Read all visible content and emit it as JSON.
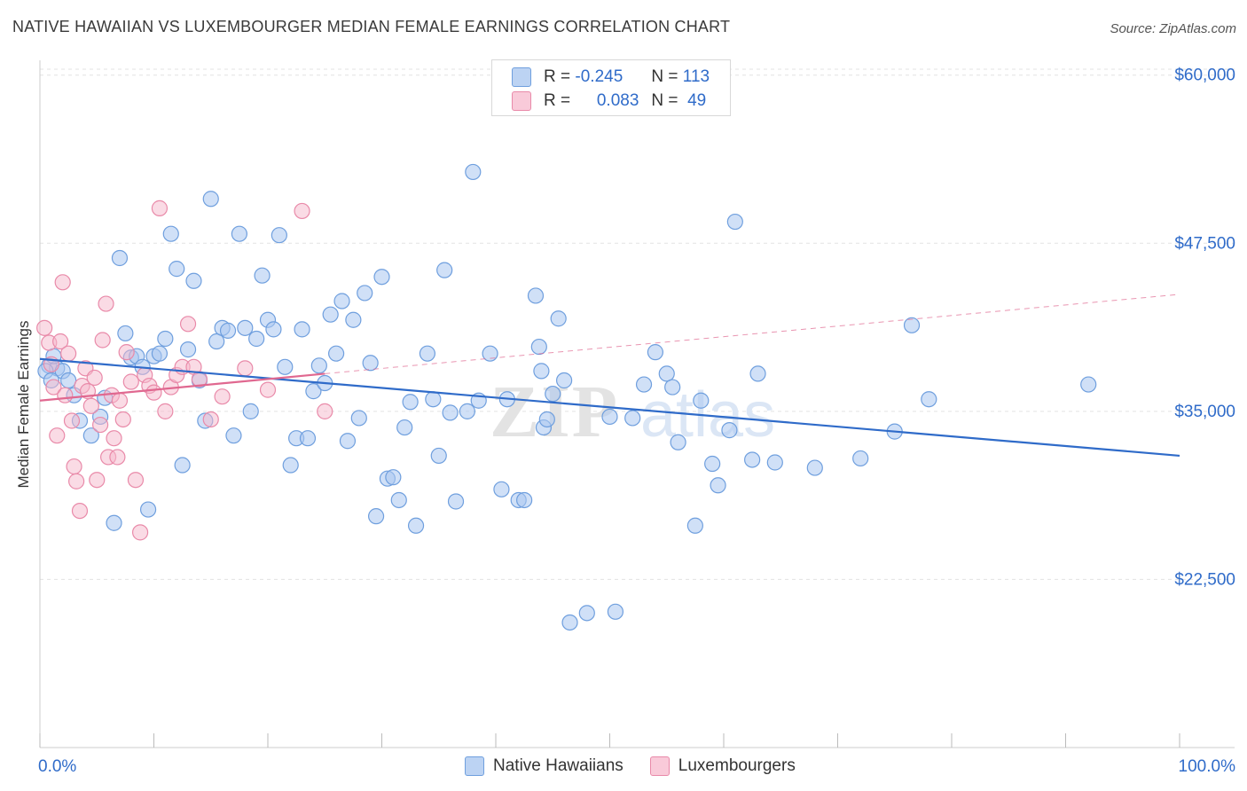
{
  "title": "NATIVE HAWAIIAN VS LUXEMBOURGER MEDIAN FEMALE EARNINGS CORRELATION CHART",
  "source": "Source: ZipAtlas.com",
  "watermark": "ZIPatlas",
  "colors": {
    "blue_fill": "#a9c7f0",
    "blue_stroke": "#6f9fde",
    "blue_line": "#2f6bc9",
    "pink_fill": "#f6b8cc",
    "pink_stroke": "#e98aa9",
    "pink_line": "#e06890",
    "grid": "#e3e3e3",
    "axis_text": "#2f6bc9"
  },
  "legend": {
    "rows": [
      {
        "r_label": "R =",
        "r_value": "-0.245",
        "n_label": "N =",
        "n_value": "113"
      },
      {
        "r_label": "R =",
        "r_value": "0.083",
        "n_label": "N =",
        "n_value": "49"
      }
    ]
  },
  "chart_data": {
    "type": "scatter",
    "title": "NATIVE HAWAIIAN VS LUXEMBOURGER MEDIAN FEMALE EARNINGS CORRELATION CHART",
    "xlabel": "",
    "ylabel": "Median Female Earnings",
    "x_tick_labels": [
      "0.0%",
      "100.0%"
    ],
    "y_ticks": [
      22500,
      35000,
      47500,
      60000
    ],
    "y_tick_labels": [
      "$22,500",
      "$35,000",
      "$47,500",
      "$60,000"
    ],
    "xlim": [
      0,
      100
    ],
    "ylim": [
      10000,
      61500
    ],
    "grid": true,
    "legend_position": "bottom",
    "series": [
      {
        "name": "Native Hawaiians",
        "color": "blue",
        "trend": {
          "x": [
            0,
            100
          ],
          "y": [
            38900,
            31700
          ]
        },
        "points": [
          [
            0.8,
            38400
          ],
          [
            1.5,
            38200
          ],
          [
            2.0,
            38000
          ],
          [
            2.5,
            37300
          ],
          [
            3.0,
            36200
          ],
          [
            3.5,
            34300
          ],
          [
            4.5,
            33200
          ],
          [
            5.3,
            34600
          ],
          [
            5.7,
            36000
          ],
          [
            6.5,
            26700
          ],
          [
            7.0,
            46400
          ],
          [
            7.5,
            40800
          ],
          [
            8.0,
            39000
          ],
          [
            8.5,
            39100
          ],
          [
            9.0,
            38300
          ],
          [
            9.5,
            27700
          ],
          [
            10.0,
            39100
          ],
          [
            10.5,
            39300
          ],
          [
            11.0,
            40400
          ],
          [
            11.5,
            48200
          ],
          [
            12.0,
            45600
          ],
          [
            12.5,
            31000
          ],
          [
            13.0,
            39600
          ],
          [
            13.5,
            44700
          ],
          [
            14.0,
            37300
          ],
          [
            14.5,
            34300
          ],
          [
            15.0,
            50800
          ],
          [
            15.5,
            40200
          ],
          [
            16.0,
            41200
          ],
          [
            16.5,
            41000
          ],
          [
            17.0,
            33200
          ],
          [
            17.5,
            48200
          ],
          [
            18.0,
            41200
          ],
          [
            18.5,
            35000
          ],
          [
            19.0,
            40400
          ],
          [
            19.5,
            45100
          ],
          [
            20.0,
            41800
          ],
          [
            20.5,
            41100
          ],
          [
            21.0,
            48100
          ],
          [
            21.5,
            38300
          ],
          [
            22.0,
            31000
          ],
          [
            22.5,
            33000
          ],
          [
            23.0,
            41100
          ],
          [
            23.5,
            33000
          ],
          [
            24.0,
            36500
          ],
          [
            24.5,
            38400
          ],
          [
            25.0,
            37100
          ],
          [
            25.5,
            42200
          ],
          [
            26.0,
            39300
          ],
          [
            26.5,
            43200
          ],
          [
            27.0,
            32800
          ],
          [
            27.5,
            41800
          ],
          [
            28.0,
            34500
          ],
          [
            28.5,
            43800
          ],
          [
            29.0,
            38600
          ],
          [
            29.5,
            27200
          ],
          [
            30.0,
            45000
          ],
          [
            30.5,
            30000
          ],
          [
            31.0,
            30100
          ],
          [
            31.5,
            28400
          ],
          [
            32.0,
            33800
          ],
          [
            32.5,
            35700
          ],
          [
            33.0,
            26500
          ],
          [
            34.0,
            39300
          ],
          [
            34.5,
            35900
          ],
          [
            35.0,
            31700
          ],
          [
            35.5,
            45500
          ],
          [
            36.0,
            34900
          ],
          [
            36.5,
            28300
          ],
          [
            37.5,
            35000
          ],
          [
            38.0,
            52800
          ],
          [
            38.5,
            35800
          ],
          [
            39.5,
            39300
          ],
          [
            40.5,
            29200
          ],
          [
            41.0,
            35900
          ],
          [
            42.0,
            28400
          ],
          [
            42.5,
            28400
          ],
          [
            43.5,
            43600
          ],
          [
            43.8,
            39800
          ],
          [
            44.0,
            38000
          ],
          [
            44.2,
            33800
          ],
          [
            44.5,
            34400
          ],
          [
            45.0,
            36300
          ],
          [
            45.5,
            41900
          ],
          [
            46.0,
            37300
          ],
          [
            46.5,
            19300
          ],
          [
            48.0,
            20000
          ],
          [
            50.0,
            34600
          ],
          [
            50.5,
            20100
          ],
          [
            52.0,
            34500
          ],
          [
            53.0,
            37000
          ],
          [
            54.0,
            39400
          ],
          [
            55.0,
            37800
          ],
          [
            55.5,
            36800
          ],
          [
            56.0,
            32700
          ],
          [
            57.5,
            26500
          ],
          [
            58.0,
            35800
          ],
          [
            59.0,
            31100
          ],
          [
            59.5,
            29500
          ],
          [
            60.5,
            33600
          ],
          [
            61.0,
            49100
          ],
          [
            62.5,
            31400
          ],
          [
            63.0,
            37800
          ],
          [
            64.5,
            31200
          ],
          [
            68.0,
            30800
          ],
          [
            72.0,
            31500
          ],
          [
            75.0,
            33500
          ],
          [
            76.5,
            41400
          ],
          [
            78.0,
            35900
          ],
          [
            92.0,
            37000
          ],
          [
            0.5,
            38000
          ],
          [
            1.0,
            37300
          ],
          [
            1.2,
            39100
          ]
        ]
      },
      {
        "name": "Luxembourgers",
        "color": "pink",
        "trend": {
          "x": [
            0,
            25
          ],
          "y": [
            35800,
            37800
          ]
        },
        "trend_extended": {
          "x": [
            25,
            100
          ],
          "y": [
            37800,
            43700
          ]
        },
        "points": [
          [
            0.4,
            41200
          ],
          [
            0.8,
            40100
          ],
          [
            1.0,
            38500
          ],
          [
            1.2,
            36800
          ],
          [
            1.5,
            33200
          ],
          [
            1.8,
            40200
          ],
          [
            2.0,
            44600
          ],
          [
            2.2,
            36200
          ],
          [
            2.5,
            39300
          ],
          [
            2.8,
            34300
          ],
          [
            3.0,
            30900
          ],
          [
            3.2,
            29800
          ],
          [
            3.5,
            27600
          ],
          [
            3.7,
            36900
          ],
          [
            4.0,
            38200
          ],
          [
            4.2,
            36500
          ],
          [
            4.5,
            35400
          ],
          [
            4.8,
            37500
          ],
          [
            5.0,
            29900
          ],
          [
            5.3,
            34000
          ],
          [
            5.5,
            40300
          ],
          [
            5.8,
            43000
          ],
          [
            6.0,
            31600
          ],
          [
            6.3,
            36200
          ],
          [
            6.5,
            33000
          ],
          [
            6.8,
            31600
          ],
          [
            7.0,
            35800
          ],
          [
            7.3,
            34400
          ],
          [
            7.6,
            39400
          ],
          [
            8.0,
            37200
          ],
          [
            8.4,
            29900
          ],
          [
            8.8,
            26000
          ],
          [
            9.2,
            37700
          ],
          [
            9.6,
            36900
          ],
          [
            10.0,
            36400
          ],
          [
            10.5,
            50100
          ],
          [
            11.0,
            35000
          ],
          [
            11.5,
            36800
          ],
          [
            12.0,
            37700
          ],
          [
            12.5,
            38300
          ],
          [
            13.0,
            41500
          ],
          [
            13.5,
            38300
          ],
          [
            14.0,
            37400
          ],
          [
            15.0,
            34400
          ],
          [
            16.0,
            36100
          ],
          [
            18.0,
            38200
          ],
          [
            20.0,
            36600
          ],
          [
            23.0,
            49900
          ],
          [
            25.0,
            35000
          ]
        ]
      }
    ]
  },
  "bottom_legend": {
    "items": [
      {
        "label": "Native Hawaiians"
      },
      {
        "label": "Luxembourgers"
      }
    ]
  }
}
